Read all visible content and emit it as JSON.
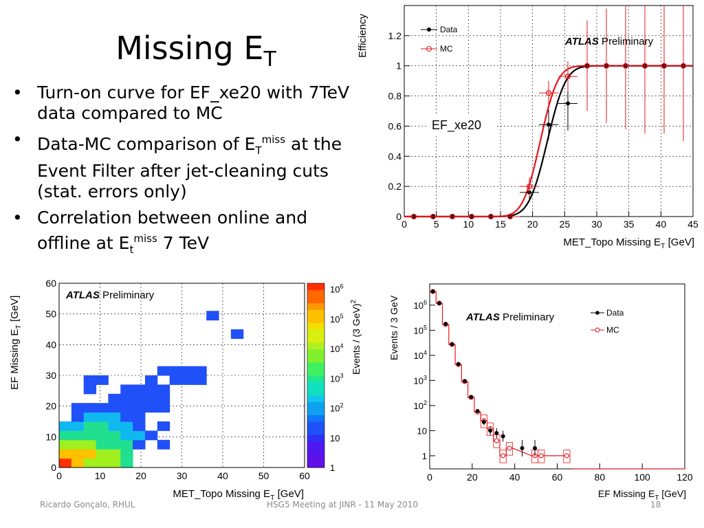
{
  "slide": {
    "title_main": "Missing E",
    "title_sub": "T",
    "bullets": [
      {
        "text": "Turn-on curve for EF_xe20 with 7TeV data compared to MC"
      },
      {
        "pre": "Data-MC comparison of E",
        "sub": "T",
        "sup": "miss",
        "post": " at the Event Filter after jet-cleaning cuts (stat. errors only)"
      },
      {
        "pre": "Correlation between online and offline at E",
        "sub": "t",
        "sup": "miss",
        "post": " 7 TeV"
      }
    ],
    "footer_left": "Ricardo Gonçalo, RHUL",
    "footer_center": "HSG5 Meeting at JINR - 11 May 2010",
    "page_number": "18"
  },
  "colors": {
    "data": "#000000",
    "mc": "#e8141b",
    "grid": "#000000"
  },
  "chart_data": [
    {
      "type": "scatter",
      "name": "turn-on",
      "atlas": "ATLAS",
      "atlas_suffix": "Preliminary",
      "annotation": "EF_xe20",
      "xlabel": "MET_Topo Missing E",
      "xlabel_sub": "T",
      "xlabel_post": " [GeV]",
      "ylabel": "Efficiency",
      "xlim": [
        0,
        45
      ],
      "ylim": [
        0,
        1.4
      ],
      "xticks": [
        0,
        5,
        10,
        15,
        20,
        25,
        30,
        35,
        40,
        45
      ],
      "yticks": [
        0,
        0.2,
        0.4,
        0.6,
        0.8,
        1,
        1.2
      ],
      "grid": true,
      "legend": "top-left",
      "series": [
        {
          "name": "Data",
          "color": "#000000",
          "x": [
            1.5,
            4.5,
            7.5,
            10.5,
            13.5,
            16.5,
            19.5,
            22.5,
            25.5,
            28.5,
            31.5,
            34.5,
            37.5,
            40.5,
            43.5
          ],
          "y": [
            0,
            0,
            0,
            0,
            0,
            0,
            0.16,
            0.61,
            0.75,
            1,
            1,
            1,
            1,
            1,
            1
          ],
          "err": [
            0,
            0,
            0,
            0,
            0,
            0.02,
            0.05,
            0.1,
            0.18,
            0.3,
            0.35,
            0.38,
            0.4,
            0.45,
            0.5
          ]
        },
        {
          "name": "MC",
          "color": "#e8141b",
          "x": [
            1.5,
            4.5,
            7.5,
            10.5,
            13.5,
            16.5,
            19.5,
            22.5,
            25.5,
            28.5,
            31.5,
            34.5,
            37.5,
            40.5,
            43.5
          ],
          "y": [
            0,
            0,
            0,
            0,
            0,
            0,
            0.2,
            0.82,
            0.93,
            1,
            1,
            1,
            1,
            1,
            1
          ],
          "err": [
            0,
            0,
            0,
            0,
            0,
            0.02,
            0.06,
            0.08,
            0.1,
            0.3,
            0.38,
            0.42,
            0.45,
            0.45,
            0.5
          ]
        }
      ]
    },
    {
      "type": "heatmap",
      "name": "correlation",
      "atlas": "ATLAS",
      "atlas_suffix": "Preliminary",
      "xlabel": "MET_Topo Missing E",
      "xlabel_sub": "T",
      "xlabel_post": " [GeV]",
      "ylabel": "EF Missing E",
      "ylabel_sub": "T",
      "ylabel_post": " [GeV]",
      "zlabel": "Events / (3 GeV)",
      "zlabel_sup": "2",
      "xlim": [
        0,
        60
      ],
      "ylim": [
        0,
        60
      ],
      "xticks": [
        0,
        10,
        20,
        30,
        40,
        50,
        60
      ],
      "yticks": [
        0,
        10,
        20,
        30,
        40,
        50,
        60
      ],
      "zticks": [
        {
          "base": "1",
          "exp": ""
        },
        {
          "base": "10",
          "exp": ""
        },
        {
          "base": "10",
          "exp": "2"
        },
        {
          "base": "10",
          "exp": "3"
        },
        {
          "base": "10",
          "exp": "4"
        },
        {
          "base": "10",
          "exp": "5"
        },
        {
          "base": "10",
          "exp": "6"
        }
      ],
      "bin_width": 3,
      "bins": [
        [
          0,
          0,
          6
        ],
        [
          3,
          0,
          5
        ],
        [
          6,
          0,
          4
        ],
        [
          9,
          0,
          4
        ],
        [
          12,
          0,
          4
        ],
        [
          15,
          0,
          3
        ],
        [
          0,
          3,
          5
        ],
        [
          3,
          3,
          5
        ],
        [
          6,
          3,
          5
        ],
        [
          9,
          3,
          4
        ],
        [
          12,
          3,
          4
        ],
        [
          15,
          3,
          3
        ],
        [
          0,
          6,
          4
        ],
        [
          3,
          6,
          4
        ],
        [
          6,
          6,
          4
        ],
        [
          9,
          6,
          3
        ],
        [
          12,
          6,
          3
        ],
        [
          15,
          6,
          3
        ],
        [
          18,
          6,
          1
        ],
        [
          0,
          9,
          3
        ],
        [
          3,
          9,
          3
        ],
        [
          6,
          9,
          3
        ],
        [
          9,
          9,
          3
        ],
        [
          12,
          9,
          3
        ],
        [
          15,
          9,
          2
        ],
        [
          18,
          9,
          2
        ],
        [
          21,
          9,
          1
        ],
        [
          0,
          12,
          2
        ],
        [
          3,
          12,
          2
        ],
        [
          6,
          12,
          3
        ],
        [
          9,
          12,
          3
        ],
        [
          12,
          12,
          2
        ],
        [
          15,
          12,
          2
        ],
        [
          18,
          12,
          1
        ],
        [
          24,
          12,
          1
        ],
        [
          3,
          15,
          1
        ],
        [
          6,
          15,
          2
        ],
        [
          9,
          15,
          2
        ],
        [
          12,
          15,
          2
        ],
        [
          15,
          15,
          1
        ],
        [
          18,
          15,
          1
        ],
        [
          3,
          18,
          1
        ],
        [
          6,
          18,
          1
        ],
        [
          9,
          18,
          1
        ],
        [
          12,
          18,
          1
        ],
        [
          15,
          18,
          1
        ],
        [
          18,
          18,
          1
        ],
        [
          21,
          18,
          1
        ],
        [
          24,
          18,
          1
        ],
        [
          12,
          21,
          1
        ],
        [
          15,
          21,
          1
        ],
        [
          18,
          21,
          1
        ],
        [
          21,
          21,
          1
        ],
        [
          24,
          21,
          1
        ],
        [
          6,
          24,
          1
        ],
        [
          15,
          24,
          1
        ],
        [
          18,
          24,
          1
        ],
        [
          21,
          24,
          1
        ],
        [
          24,
          24,
          1
        ],
        [
          6,
          27,
          1
        ],
        [
          9,
          27,
          1
        ],
        [
          21,
          27,
          1
        ],
        [
          27,
          27,
          1
        ],
        [
          30,
          27,
          1
        ],
        [
          33,
          27,
          1
        ],
        [
          24,
          30,
          1
        ],
        [
          27,
          30,
          1
        ],
        [
          30,
          30,
          1
        ],
        [
          33,
          30,
          1
        ],
        [
          42,
          42,
          1
        ],
        [
          36,
          48,
          1
        ],
        [
          24,
          6,
          1
        ]
      ]
    },
    {
      "type": "scatter",
      "name": "met-distribution",
      "atlas": "ATLAS",
      "atlas_suffix": "Preliminary",
      "xlabel": "EF Missing E",
      "xlabel_sub": "T",
      "xlabel_post": " [GeV]",
      "ylabel": "Events / 3 GeV",
      "log_y": true,
      "xlim": [
        0,
        120
      ],
      "ylim": [
        0.3,
        7000000
      ],
      "xticks": [
        0,
        20,
        40,
        60,
        80,
        100,
        120
      ],
      "yticks": [
        {
          "base": "1",
          "exp": ""
        },
        {
          "base": "10",
          "exp": ""
        },
        {
          "base": "10",
          "exp": "2"
        },
        {
          "base": "10",
          "exp": "3"
        },
        {
          "base": "10",
          "exp": "4"
        },
        {
          "base": "10",
          "exp": "5"
        },
        {
          "base": "10",
          "exp": "6"
        }
      ],
      "grid": true,
      "legend": "top-right",
      "series": [
        {
          "name": "Data",
          "color": "#000000",
          "x": [
            1.5,
            4.5,
            7.5,
            10.5,
            13.5,
            16.5,
            19.5,
            22.5,
            25.5,
            28.5,
            31.5,
            34.5,
            43.5,
            49.5
          ],
          "y": [
            3500000,
            1200000,
            180000,
            28000,
            4500,
            950,
            220,
            60,
            22,
            10,
            8,
            6,
            2,
            2
          ]
        },
        {
          "name": "MC",
          "color": "#e8141b",
          "x": [
            1.5,
            4.5,
            7.5,
            10.5,
            13.5,
            16.5,
            19.5,
            22.5,
            25.5,
            28.5,
            31.5,
            34.5,
            37.5,
            49.5,
            52.5,
            64.5
          ],
          "y": [
            3500000,
            1200000,
            170000,
            27000,
            4300,
            900,
            210,
            55,
            25,
            12,
            4,
            1,
            2,
            1,
            1,
            1
          ]
        }
      ]
    }
  ]
}
